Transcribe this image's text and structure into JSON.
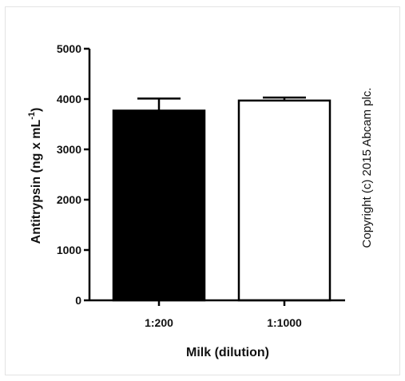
{
  "chart_data": {
    "type": "bar",
    "categories": [
      "1:200",
      "1:1000"
    ],
    "values": [
      3770,
      3970
    ],
    "errors": [
      240,
      60
    ],
    "bar_fill": [
      "#000000",
      "#ffffff"
    ],
    "bar_stroke": "#000000",
    "xlabel": "Milk (dilution)",
    "ylabel_main": "Antitrypsin (ng x mL",
    "ylabel_sup": "-1",
    "ylabel_end": ")",
    "ylim": [
      0,
      5000
    ],
    "yticks": [
      0,
      1000,
      2000,
      3000,
      4000,
      5000
    ],
    "grid": false
  },
  "watermark": "Copyright (c) 2015 Abcam plc."
}
